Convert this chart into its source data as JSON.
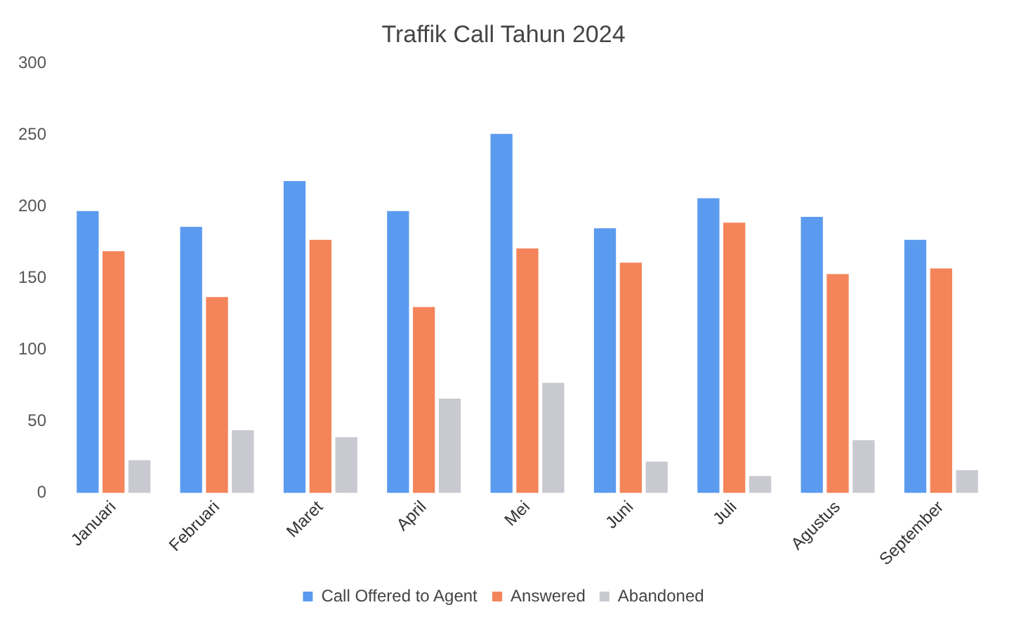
{
  "chart_data": {
    "type": "bar",
    "title": "Traffik Call Tahun 2024",
    "categories": [
      "Januari",
      "Februari",
      "Maret",
      "April",
      "Mei",
      "Juni",
      "Juli",
      "Agustus",
      "September"
    ],
    "series": [
      {
        "name": "Call Offered to Agent",
        "color": "#5b9bef",
        "values": [
          197,
          186,
          218,
          197,
          251,
          185,
          206,
          193,
          177
        ]
      },
      {
        "name": "Answered",
        "color": "#f4845a",
        "values": [
          169,
          137,
          177,
          130,
          171,
          161,
          189,
          153,
          157
        ]
      },
      {
        "name": "Abandoned",
        "color": "#c9c9d1",
        "values": [
          23,
          44,
          39,
          66,
          77,
          22,
          12,
          37,
          16
        ]
      }
    ],
    "ylim": [
      0,
      300
    ],
    "yticks": [
      0,
      50,
      100,
      150,
      200,
      250,
      300
    ],
    "grid": false,
    "legend": "bottom"
  }
}
